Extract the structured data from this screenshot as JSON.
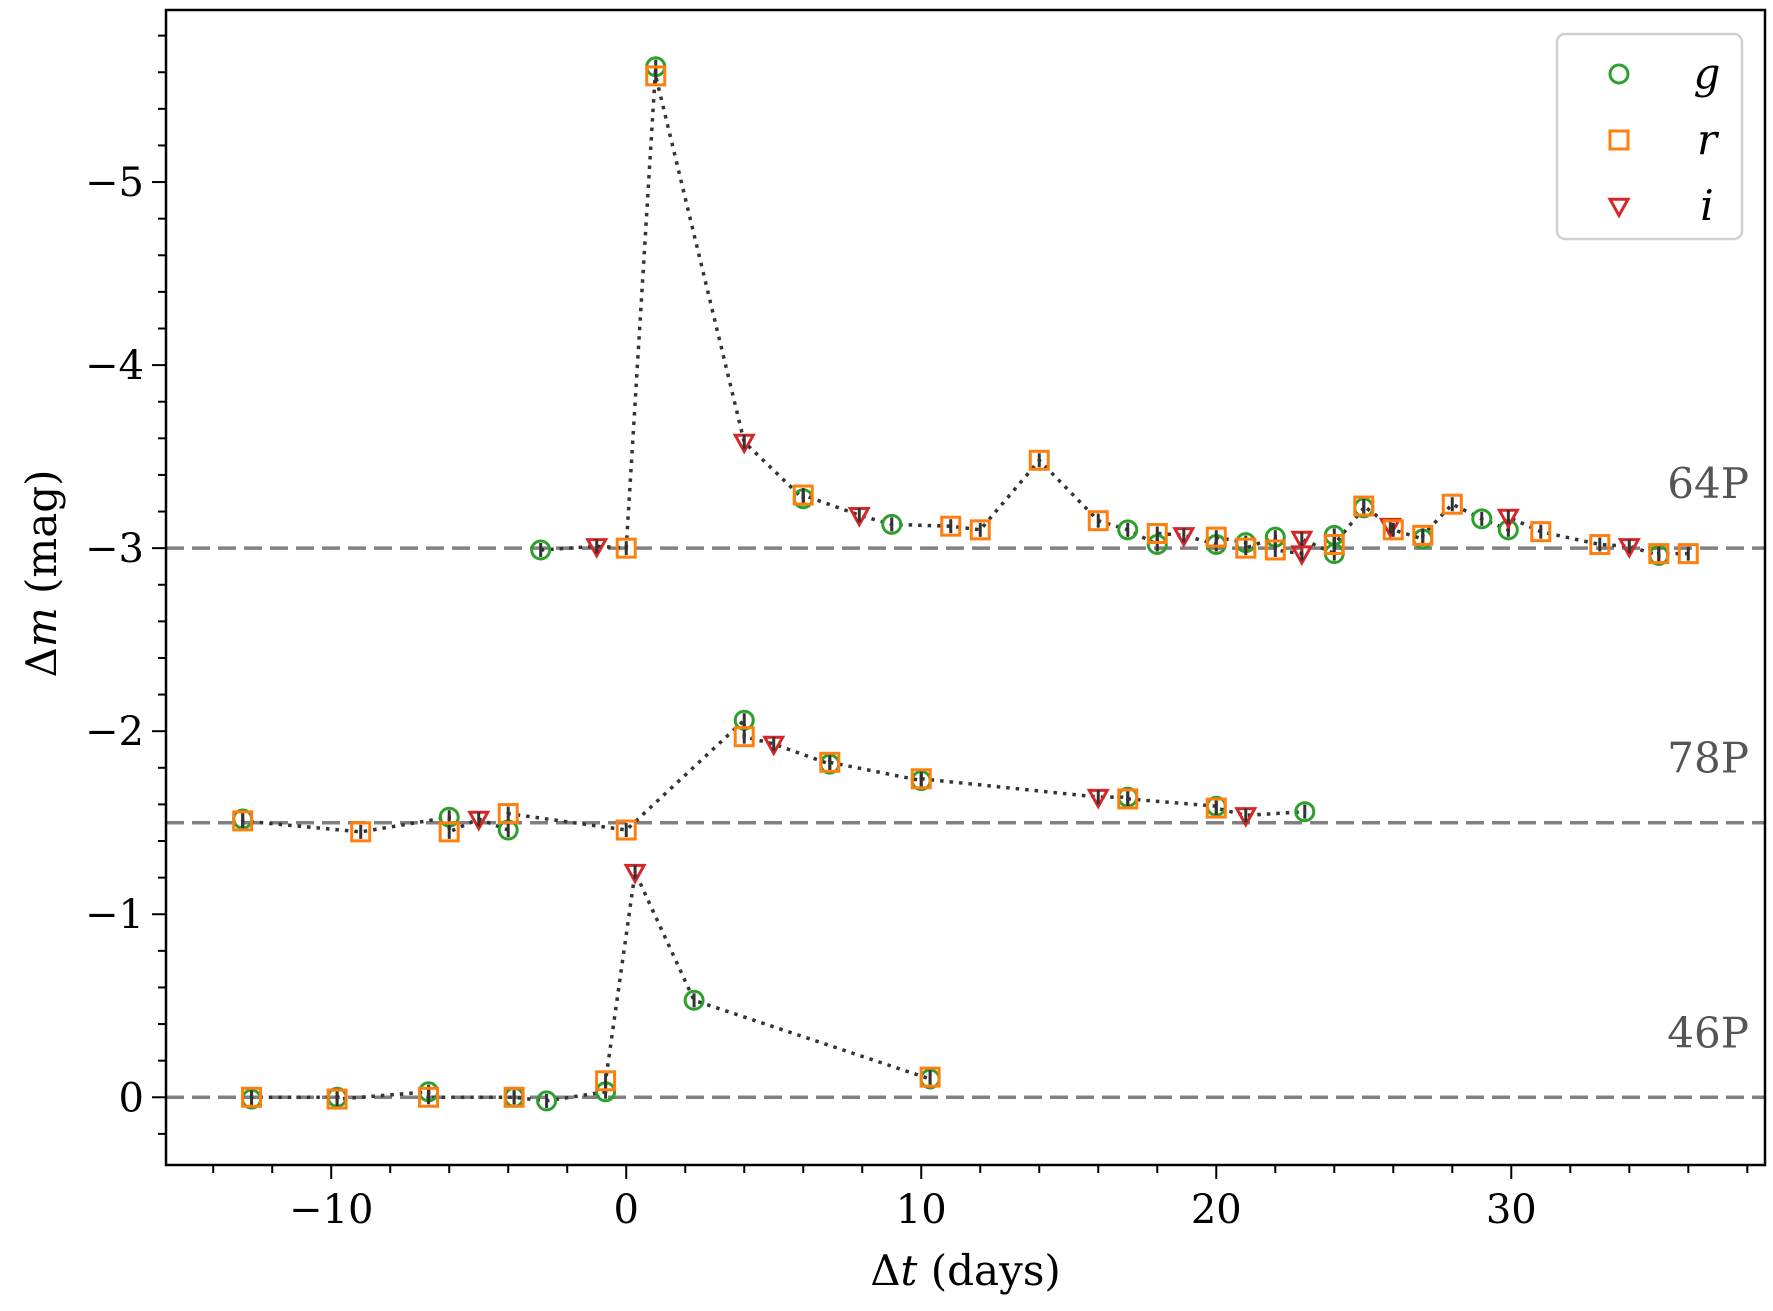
{
  "chart_data": {
    "type": "scatter",
    "title": "",
    "xlabel": "Δt (days)",
    "ylabel": "Δm (mag)",
    "xlabel_parts": {
      "symbol": "Δ",
      "var": "t",
      "unit": " (days)"
    },
    "ylabel_parts": {
      "symbol": "Δ",
      "var": "m",
      "unit": " (mag)"
    },
    "xlim": [
      -15.6,
      38.6
    ],
    "ylim": [
      0.37,
      -5.94
    ],
    "y_inverted": true,
    "xticks": [
      -10,
      0,
      10,
      20,
      30
    ],
    "xtick_labels": [
      "−10",
      "0",
      "10",
      "20",
      "30"
    ],
    "yticks": [
      0,
      -1,
      -2,
      -3,
      -4,
      -5
    ],
    "ytick_labels": [
      "0",
      "−1",
      "−2",
      "−3",
      "−4",
      "−5"
    ],
    "x_minor_step": 2,
    "y_minor_step": 0.2,
    "grid": false,
    "legend": {
      "placement": "top-right",
      "entries": [
        {
          "label": "g",
          "marker": "circle",
          "color": "#2ca02c"
        },
        {
          "label": "r",
          "marker": "square",
          "color": "#ff7f0e"
        },
        {
          "label": "i",
          "marker": "triangle-down",
          "color": "#d62728"
        }
      ]
    },
    "colors": {
      "g": "#2ca02c",
      "r": "#ff7f0e",
      "i": "#d62728",
      "connector": "#333333",
      "baseline": "#808080"
    },
    "comets": [
      {
        "name": "64P",
        "offset": -3.0,
        "points": [
          {
            "x": -2.9,
            "y": -2.99,
            "band": "g"
          },
          {
            "x": -1.0,
            "y": -3.01,
            "band": "i"
          },
          {
            "x": 0.0,
            "y": -3.0,
            "band": "r"
          },
          {
            "x": 1.0,
            "y": -5.63,
            "band": "g"
          },
          {
            "x": 1.0,
            "y": -5.58,
            "band": "r"
          },
          {
            "x": 4.0,
            "y": -3.58,
            "band": "i"
          },
          {
            "x": 6.0,
            "y": -3.27,
            "band": "g"
          },
          {
            "x": 6.0,
            "y": -3.29,
            "band": "r"
          },
          {
            "x": 7.9,
            "y": -3.18,
            "band": "i"
          },
          {
            "x": 9.0,
            "y": -3.13,
            "band": "g"
          },
          {
            "x": 11.0,
            "y": -3.12,
            "band": "r"
          },
          {
            "x": 12.0,
            "y": -3.1,
            "band": "r"
          },
          {
            "x": 14.0,
            "y": -3.48,
            "band": "r"
          },
          {
            "x": 16.0,
            "y": -3.15,
            "band": "r"
          },
          {
            "x": 17.0,
            "y": -3.1,
            "band": "g"
          },
          {
            "x": 18.0,
            "y": -3.02,
            "band": "g"
          },
          {
            "x": 18.0,
            "y": -3.08,
            "band": "r"
          },
          {
            "x": 18.9,
            "y": -3.07,
            "band": "i"
          },
          {
            "x": 20.0,
            "y": -3.02,
            "band": "g"
          },
          {
            "x": 20.0,
            "y": -3.06,
            "band": "r"
          },
          {
            "x": 21.0,
            "y": -3.03,
            "band": "g"
          },
          {
            "x": 21.0,
            "y": -3.0,
            "band": "r"
          },
          {
            "x": 22.0,
            "y": -3.06,
            "band": "g"
          },
          {
            "x": 22.0,
            "y": -2.99,
            "band": "r"
          },
          {
            "x": 22.9,
            "y": -2.97,
            "band": "i"
          },
          {
            "x": 22.9,
            "y": -3.05,
            "band": "i"
          },
          {
            "x": 24.0,
            "y": -2.97,
            "band": "g"
          },
          {
            "x": 24.0,
            "y": -3.07,
            "band": "g"
          },
          {
            "x": 24.0,
            "y": -3.02,
            "band": "r"
          },
          {
            "x": 25.0,
            "y": -3.22,
            "band": "g"
          },
          {
            "x": 25.0,
            "y": -3.23,
            "band": "r"
          },
          {
            "x": 25.9,
            "y": -3.12,
            "band": "i"
          },
          {
            "x": 26.0,
            "y": -3.1,
            "band": "r"
          },
          {
            "x": 27.0,
            "y": -3.05,
            "band": "g"
          },
          {
            "x": 27.0,
            "y": -3.07,
            "band": "r"
          },
          {
            "x": 28.0,
            "y": -3.24,
            "band": "r"
          },
          {
            "x": 29.0,
            "y": -3.16,
            "band": "g"
          },
          {
            "x": 29.9,
            "y": -3.1,
            "band": "g"
          },
          {
            "x": 29.9,
            "y": -3.17,
            "band": "i"
          },
          {
            "x": 31.0,
            "y": -3.09,
            "band": "r"
          },
          {
            "x": 33.0,
            "y": -3.02,
            "band": "r"
          },
          {
            "x": 34.0,
            "y": -3.01,
            "band": "i"
          },
          {
            "x": 35.0,
            "y": -2.96,
            "band": "g"
          },
          {
            "x": 35.0,
            "y": -2.97,
            "band": "r"
          },
          {
            "x": 36.0,
            "y": -2.97,
            "band": "r"
          }
        ]
      },
      {
        "name": "78P",
        "offset": -1.5,
        "points": [
          {
            "x": -13.0,
            "y": -1.52,
            "band": "g"
          },
          {
            "x": -13.0,
            "y": -1.51,
            "band": "r"
          },
          {
            "x": -9.0,
            "y": -1.45,
            "band": "r"
          },
          {
            "x": -6.0,
            "y": -1.53,
            "band": "g"
          },
          {
            "x": -6.0,
            "y": -1.45,
            "band": "r"
          },
          {
            "x": -5.0,
            "y": -1.52,
            "band": "i"
          },
          {
            "x": -4.0,
            "y": -1.46,
            "band": "g"
          },
          {
            "x": -4.0,
            "y": -1.55,
            "band": "r"
          },
          {
            "x": 0.0,
            "y": -1.46,
            "band": "r"
          },
          {
            "x": 4.0,
            "y": -2.06,
            "band": "g"
          },
          {
            "x": 4.0,
            "y": -1.97,
            "band": "r"
          },
          {
            "x": 5.0,
            "y": -1.93,
            "band": "i"
          },
          {
            "x": 6.9,
            "y": -1.82,
            "band": "g"
          },
          {
            "x": 6.9,
            "y": -1.83,
            "band": "r"
          },
          {
            "x": 10.0,
            "y": -1.73,
            "band": "g"
          },
          {
            "x": 10.0,
            "y": -1.74,
            "band": "r"
          },
          {
            "x": 16.0,
            "y": -1.64,
            "band": "i"
          },
          {
            "x": 17.0,
            "y": -1.64,
            "band": "g"
          },
          {
            "x": 17.0,
            "y": -1.63,
            "band": "r"
          },
          {
            "x": 20.0,
            "y": -1.59,
            "band": "g"
          },
          {
            "x": 20.0,
            "y": -1.58,
            "band": "r"
          },
          {
            "x": 21.0,
            "y": -1.54,
            "band": "i"
          },
          {
            "x": 23.0,
            "y": -1.56,
            "band": "g"
          }
        ]
      },
      {
        "name": "46P",
        "offset": 0.0,
        "points": [
          {
            "x": -12.7,
            "y": 0.01,
            "band": "g"
          },
          {
            "x": -12.7,
            "y": 0.0,
            "band": "r"
          },
          {
            "x": -9.8,
            "y": 0.0,
            "band": "g"
          },
          {
            "x": -9.8,
            "y": 0.01,
            "band": "r"
          },
          {
            "x": -6.7,
            "y": -0.03,
            "band": "g"
          },
          {
            "x": -6.7,
            "y": 0.0,
            "band": "r"
          },
          {
            "x": -3.8,
            "y": 0.0,
            "band": "g"
          },
          {
            "x": -3.8,
            "y": 0.0,
            "band": "r"
          },
          {
            "x": -2.7,
            "y": 0.02,
            "band": "g"
          },
          {
            "x": -0.7,
            "y": -0.03,
            "band": "g"
          },
          {
            "x": -0.7,
            "y": -0.09,
            "band": "r"
          },
          {
            "x": 0.3,
            "y": -1.23,
            "band": "i"
          },
          {
            "x": 2.3,
            "y": -0.53,
            "band": "g"
          },
          {
            "x": 10.3,
            "y": -0.1,
            "band": "g"
          },
          {
            "x": 10.3,
            "y": -0.11,
            "band": "r"
          }
        ]
      }
    ]
  }
}
